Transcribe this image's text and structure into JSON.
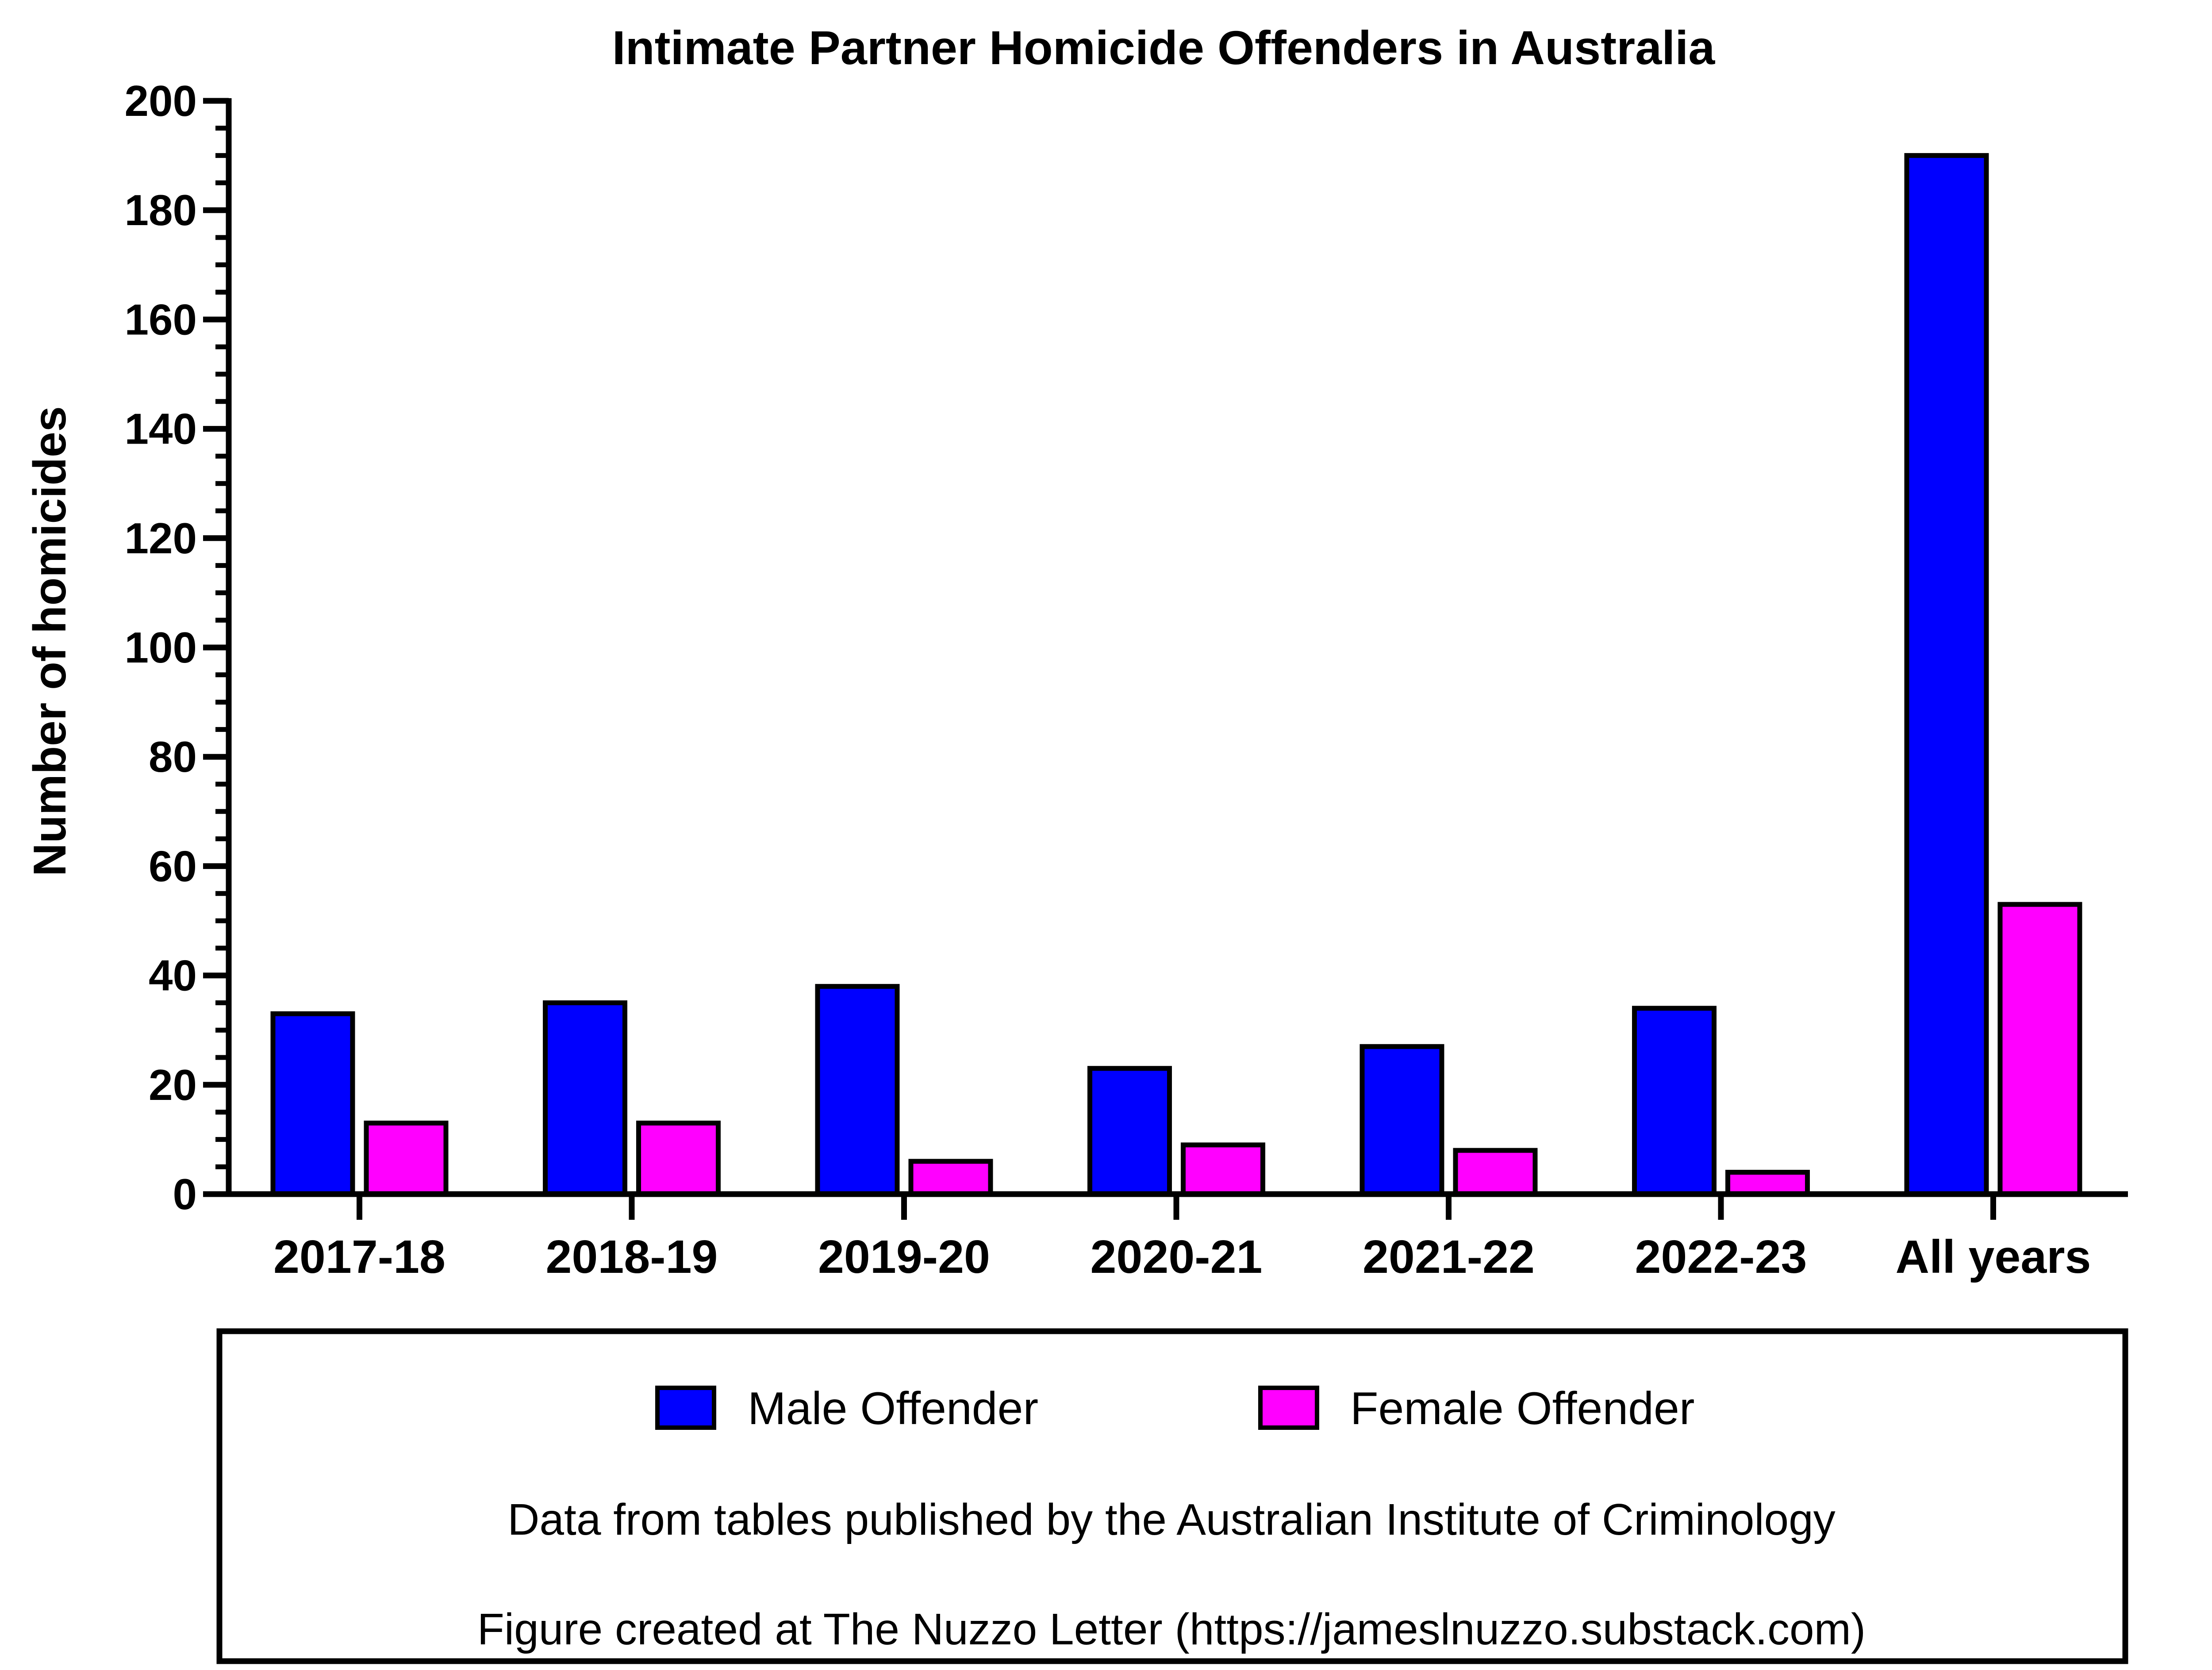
{
  "chart_data": {
    "type": "bar",
    "title": "Intimate Partner Homicide Offenders in Australia",
    "xlabel": "",
    "ylabel": "Number of homicides",
    "categories": [
      "2017-18",
      "2018-19",
      "2019-20",
      "2020-21",
      "2021-22",
      "2022-23",
      "All years"
    ],
    "series": [
      {
        "name": "Male Offender",
        "color": "#0000ff",
        "values": [
          33,
          35,
          38,
          23,
          27,
          34,
          190
        ]
      },
      {
        "name": "Female Offender",
        "color": "#ff00ff",
        "values": [
          13,
          13,
          6,
          9,
          8,
          4,
          53
        ]
      }
    ],
    "ylim": [
      0,
      200
    ],
    "yticks": [
      0,
      20,
      40,
      60,
      80,
      100,
      120,
      140,
      160,
      180,
      200
    ],
    "grid": false,
    "legend": "bottom box",
    "notes": [
      "Data from tables published by the Australian Institute of Criminology",
      "Figure created at The Nuzzo Letter (https://jameslnuzzo.substack.com)"
    ]
  }
}
